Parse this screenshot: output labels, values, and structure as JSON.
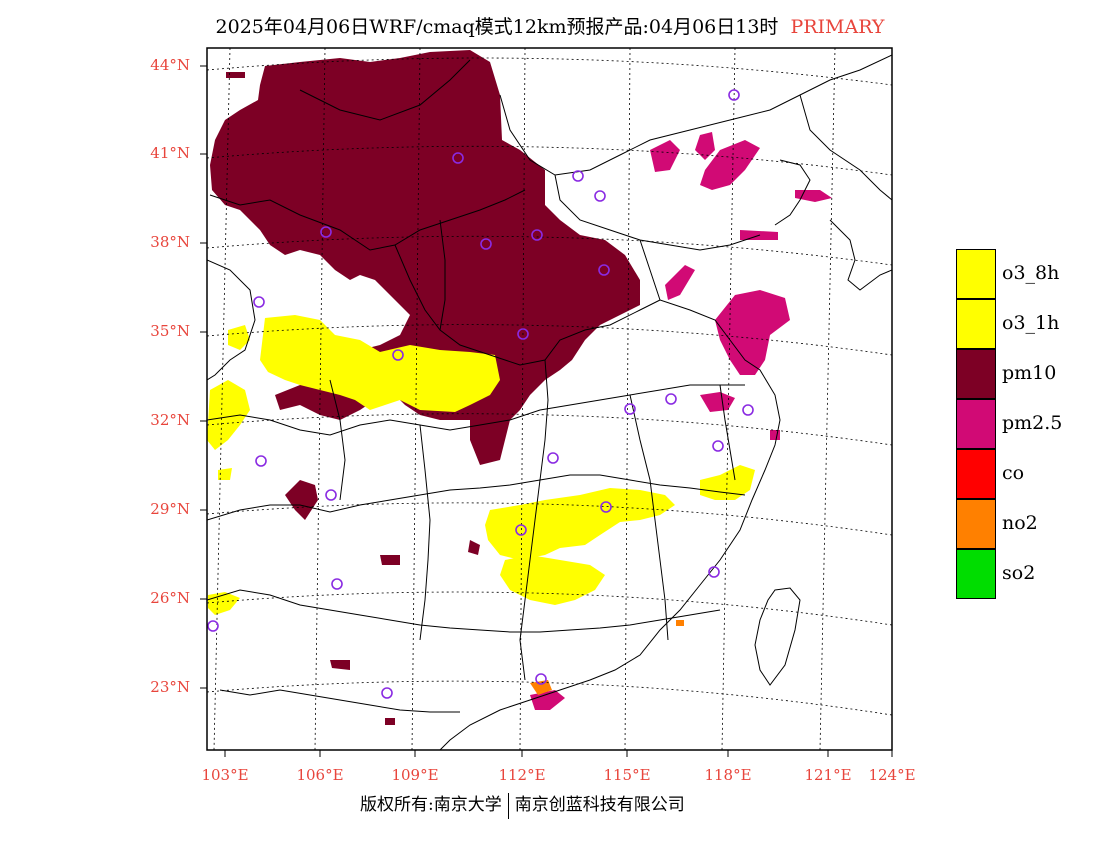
{
  "title": {
    "main": "2025年04月06日WRF/cmaq模式12km预报产品:04月06日13时",
    "tag": "PRIMARY"
  },
  "colors": {
    "label": "#e8453c",
    "o3_8h": "#ffff00",
    "o3_1h": "#ffff00",
    "pm10": "#7d0025",
    "pm2_5": "#d10a75",
    "co": "#ff0000",
    "no2": "#ff8000",
    "so2": "#00dd00",
    "station": "#8a2be2"
  },
  "map": {
    "lat_labels": [
      "44°N",
      "41°N",
      "38°N",
      "35°N",
      "32°N",
      "29°N",
      "26°N",
      "23°N"
    ],
    "lon_labels": [
      "103°E",
      "106°E",
      "109°E",
      "112°E",
      "115°E",
      "118°E",
      "121°E",
      "124°E"
    ]
  },
  "legend": [
    {
      "label": "o3_8h",
      "color": "#ffff00"
    },
    {
      "label": "o3_1h",
      "color": "#ffff00"
    },
    {
      "label": "pm10",
      "color": "#7d0025"
    },
    {
      "label": "pm2.5",
      "color": "#d10a75"
    },
    {
      "label": "co",
      "color": "#ff0000"
    },
    {
      "label": "no2",
      "color": "#ff8000"
    },
    {
      "label": "so2",
      "color": "#00dd00"
    }
  ],
  "footer": {
    "left": "版权所有:南京大学",
    "right": "南京创蓝科技有限公司"
  }
}
